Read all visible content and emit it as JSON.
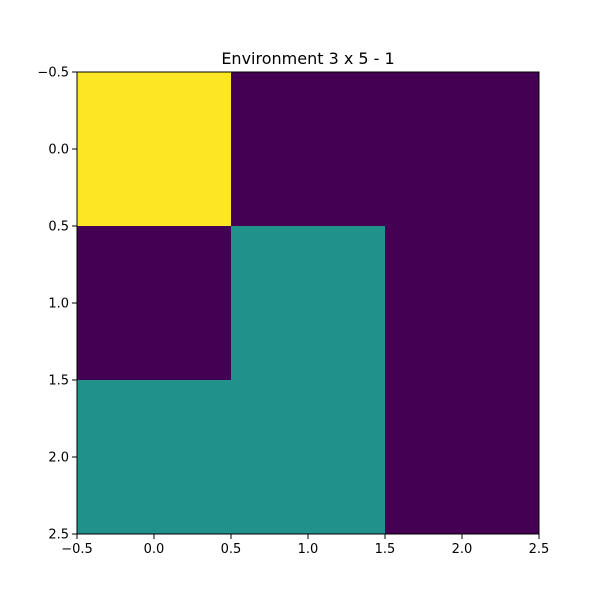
{
  "chart_data": {
    "type": "heatmap",
    "title": "Environment 3 x 5 - 1",
    "xlabel": "",
    "ylabel": "",
    "xlim": [
      -0.5,
      2.5
    ],
    "ylim": [
      2.5,
      -0.5
    ],
    "y_inverted": true,
    "grid": false,
    "colormap": "viridis",
    "vmin": 0,
    "vmax": 2,
    "values": [
      [
        2,
        0,
        0
      ],
      [
        0,
        1,
        0
      ],
      [
        1,
        1,
        0
      ]
    ],
    "xticks": [
      -0.5,
      0.0,
      0.5,
      1.0,
      1.5,
      2.0,
      2.5
    ],
    "xtick_labels": [
      "−0.5",
      "0.0",
      "0.5",
      "1.0",
      "1.5",
      "2.0",
      "2.5"
    ],
    "yticks": [
      -0.5,
      0.0,
      0.5,
      1.0,
      1.5,
      2.0,
      2.5
    ],
    "ytick_labels": [
      "−0.5",
      "0.0",
      "0.5",
      "1.0",
      "1.5",
      "2.0",
      "2.5"
    ],
    "colors": {
      "0": "#440154",
      "1": "#21918c",
      "2": "#fde725"
    }
  }
}
